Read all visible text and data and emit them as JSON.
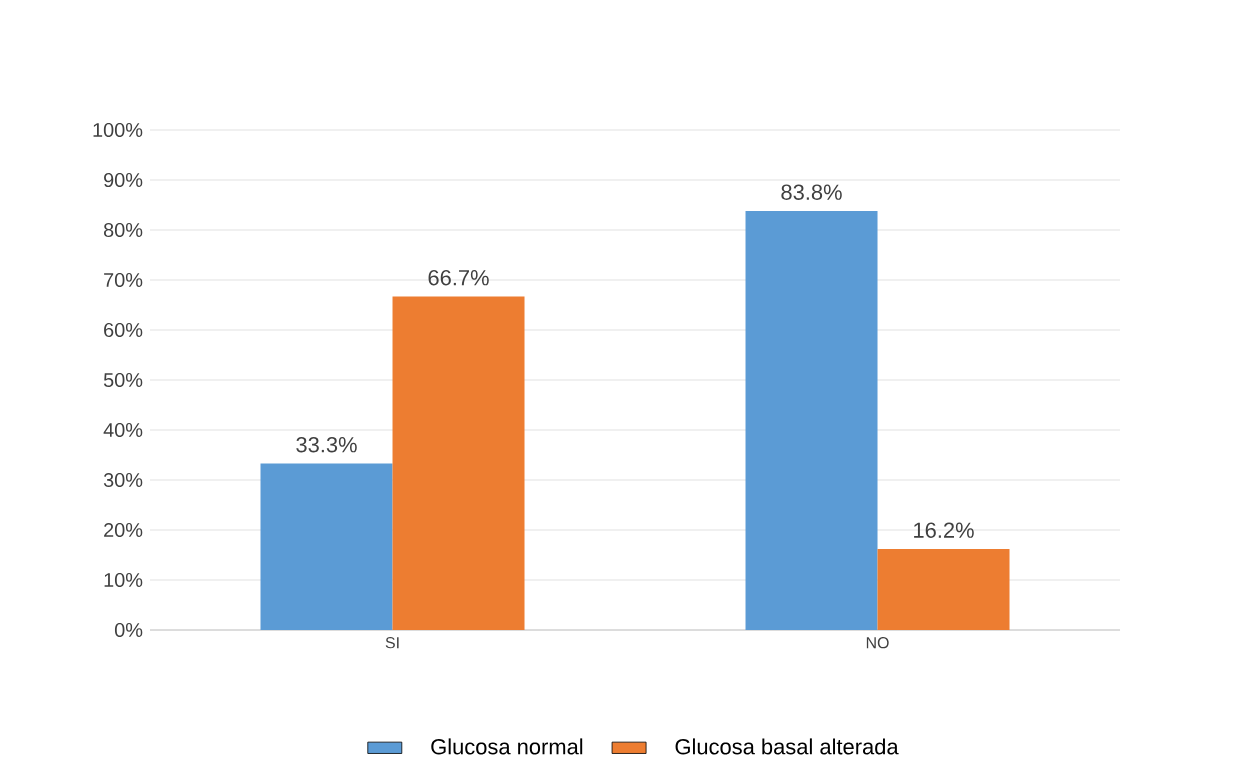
{
  "chart_data": {
    "type": "bar",
    "categories": [
      "SI",
      "NO"
    ],
    "series": [
      {
        "name": "Glucosa normal",
        "color": "#5b9bd5",
        "values": [
          33.3,
          83.8
        ],
        "value_labels": [
          "33.3%",
          "83.8%"
        ]
      },
      {
        "name": "Glucosa basal alterada",
        "color": "#ed7d31",
        "values": [
          66.7,
          16.2
        ],
        "value_labels": [
          "66.7%",
          "16.2%"
        ]
      }
    ],
    "ylim": [
      0,
      100
    ],
    "yticks": [
      {
        "value": 0,
        "label": "0%"
      },
      {
        "value": 10,
        "label": "10%"
      },
      {
        "value": 20,
        "label": "20%"
      },
      {
        "value": 30,
        "label": "30%"
      },
      {
        "value": 40,
        "label": "40%"
      },
      {
        "value": 50,
        "label": "50%"
      },
      {
        "value": 60,
        "label": "60%"
      },
      {
        "value": 70,
        "label": "70%"
      },
      {
        "value": 80,
        "label": "80%"
      },
      {
        "value": 90,
        "label": "90%"
      },
      {
        "value": 100,
        "label": "100%"
      }
    ],
    "grid": "y",
    "legend": "bottom"
  }
}
